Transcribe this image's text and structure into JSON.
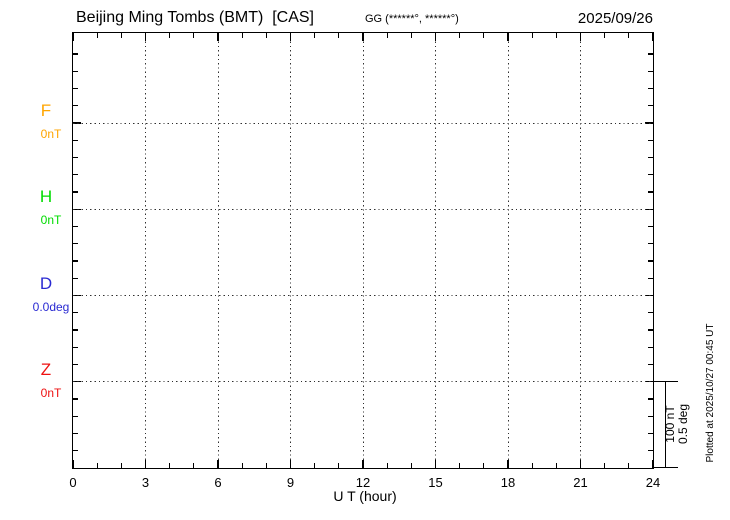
{
  "header": {
    "title": "Beijing Ming Tombs (BMT)  [CAS]",
    "gg_coords": "GG (******°, ******°)",
    "date": "2025/09/26"
  },
  "chart_data": {
    "type": "line",
    "title": "Beijing Ming Tombs (BMT) [CAS]",
    "date_shown": "2025/09/26",
    "xlabel": "U T (hour)",
    "xlim": [
      0,
      24
    ],
    "x_ticks": [
      "0",
      "3",
      "6",
      "9",
      "12",
      "15",
      "18",
      "21",
      "24"
    ],
    "x_major_tick_step_hours": 3,
    "x_minor_tick_step_hours": 1,
    "gridline_hours": [
      3,
      6,
      9,
      12,
      15,
      18,
      21
    ],
    "grid": true,
    "series": [
      {
        "name": "F",
        "unit_label": "0nT",
        "color": "#FFA500",
        "values": []
      },
      {
        "name": "H",
        "unit_label": "0nT",
        "color": "#00DC00",
        "values": []
      },
      {
        "name": "D",
        "unit_label": "0.0deg",
        "color": "#2A2AD2",
        "values": []
      },
      {
        "name": "Z",
        "unit_label": "0nT",
        "color": "#EE1111",
        "values": []
      }
    ],
    "scale_bar": {
      "labels": [
        "100 nT",
        "0.5 deg"
      ]
    },
    "plotted_at": "Plotted at 2025/10/27 00:45 UT"
  }
}
